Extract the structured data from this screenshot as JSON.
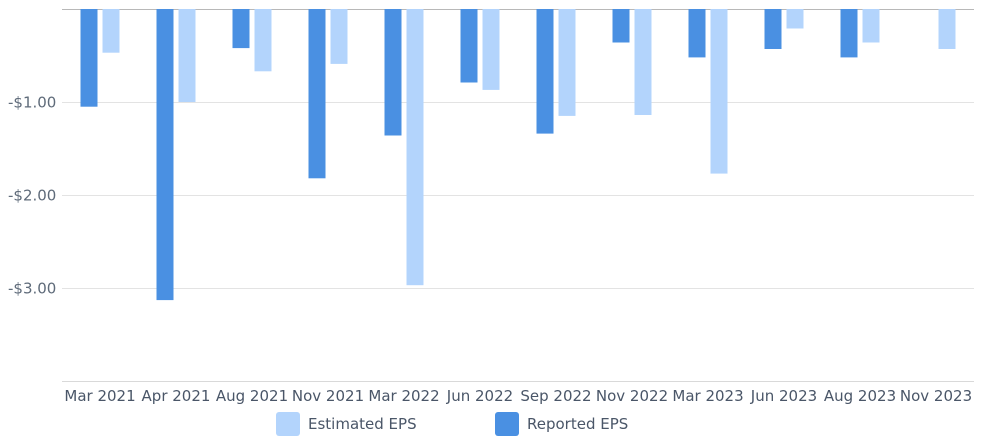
{
  "chart_data": {
    "type": "bar",
    "title": "",
    "xlabel": "",
    "ylabel": "",
    "categories": [
      "Mar 2021",
      "Apr 2021",
      "Aug 2021",
      "Nov 2021",
      "Mar 2022",
      "Jun 2022",
      "Sep 2022",
      "Nov 2022",
      "Mar 2023",
      "Jun 2023",
      "Aug 2023",
      "Nov 2023"
    ],
    "series": [
      {
        "name": "Reported EPS",
        "color": "#4a90e2",
        "values": [
          -1.05,
          -3.13,
          -0.42,
          -1.82,
          -1.36,
          -0.79,
          -1.34,
          -0.36,
          -0.52,
          -0.43,
          -0.52,
          null
        ]
      },
      {
        "name": "Estimated EPS",
        "color": "#b3d4fc",
        "values": [
          -0.47,
          -1.0,
          -0.67,
          -0.59,
          -2.97,
          -0.87,
          -1.15,
          -1.14,
          -1.77,
          -0.21,
          -0.36,
          -0.43
        ]
      }
    ],
    "ylim": [
      -4,
      0
    ],
    "yticks": [
      0,
      -1,
      -2,
      -3
    ],
    "ytick_labels": [
      "",
      "-$1.00",
      "-$2.00",
      "-$3.00"
    ],
    "grid": true,
    "legend_position": "bottom-center"
  },
  "legend": {
    "estimated_label": "Estimated EPS",
    "reported_label": "Reported EPS",
    "estimated_color": "#b3d4fc",
    "reported_color": "#4a90e2"
  }
}
